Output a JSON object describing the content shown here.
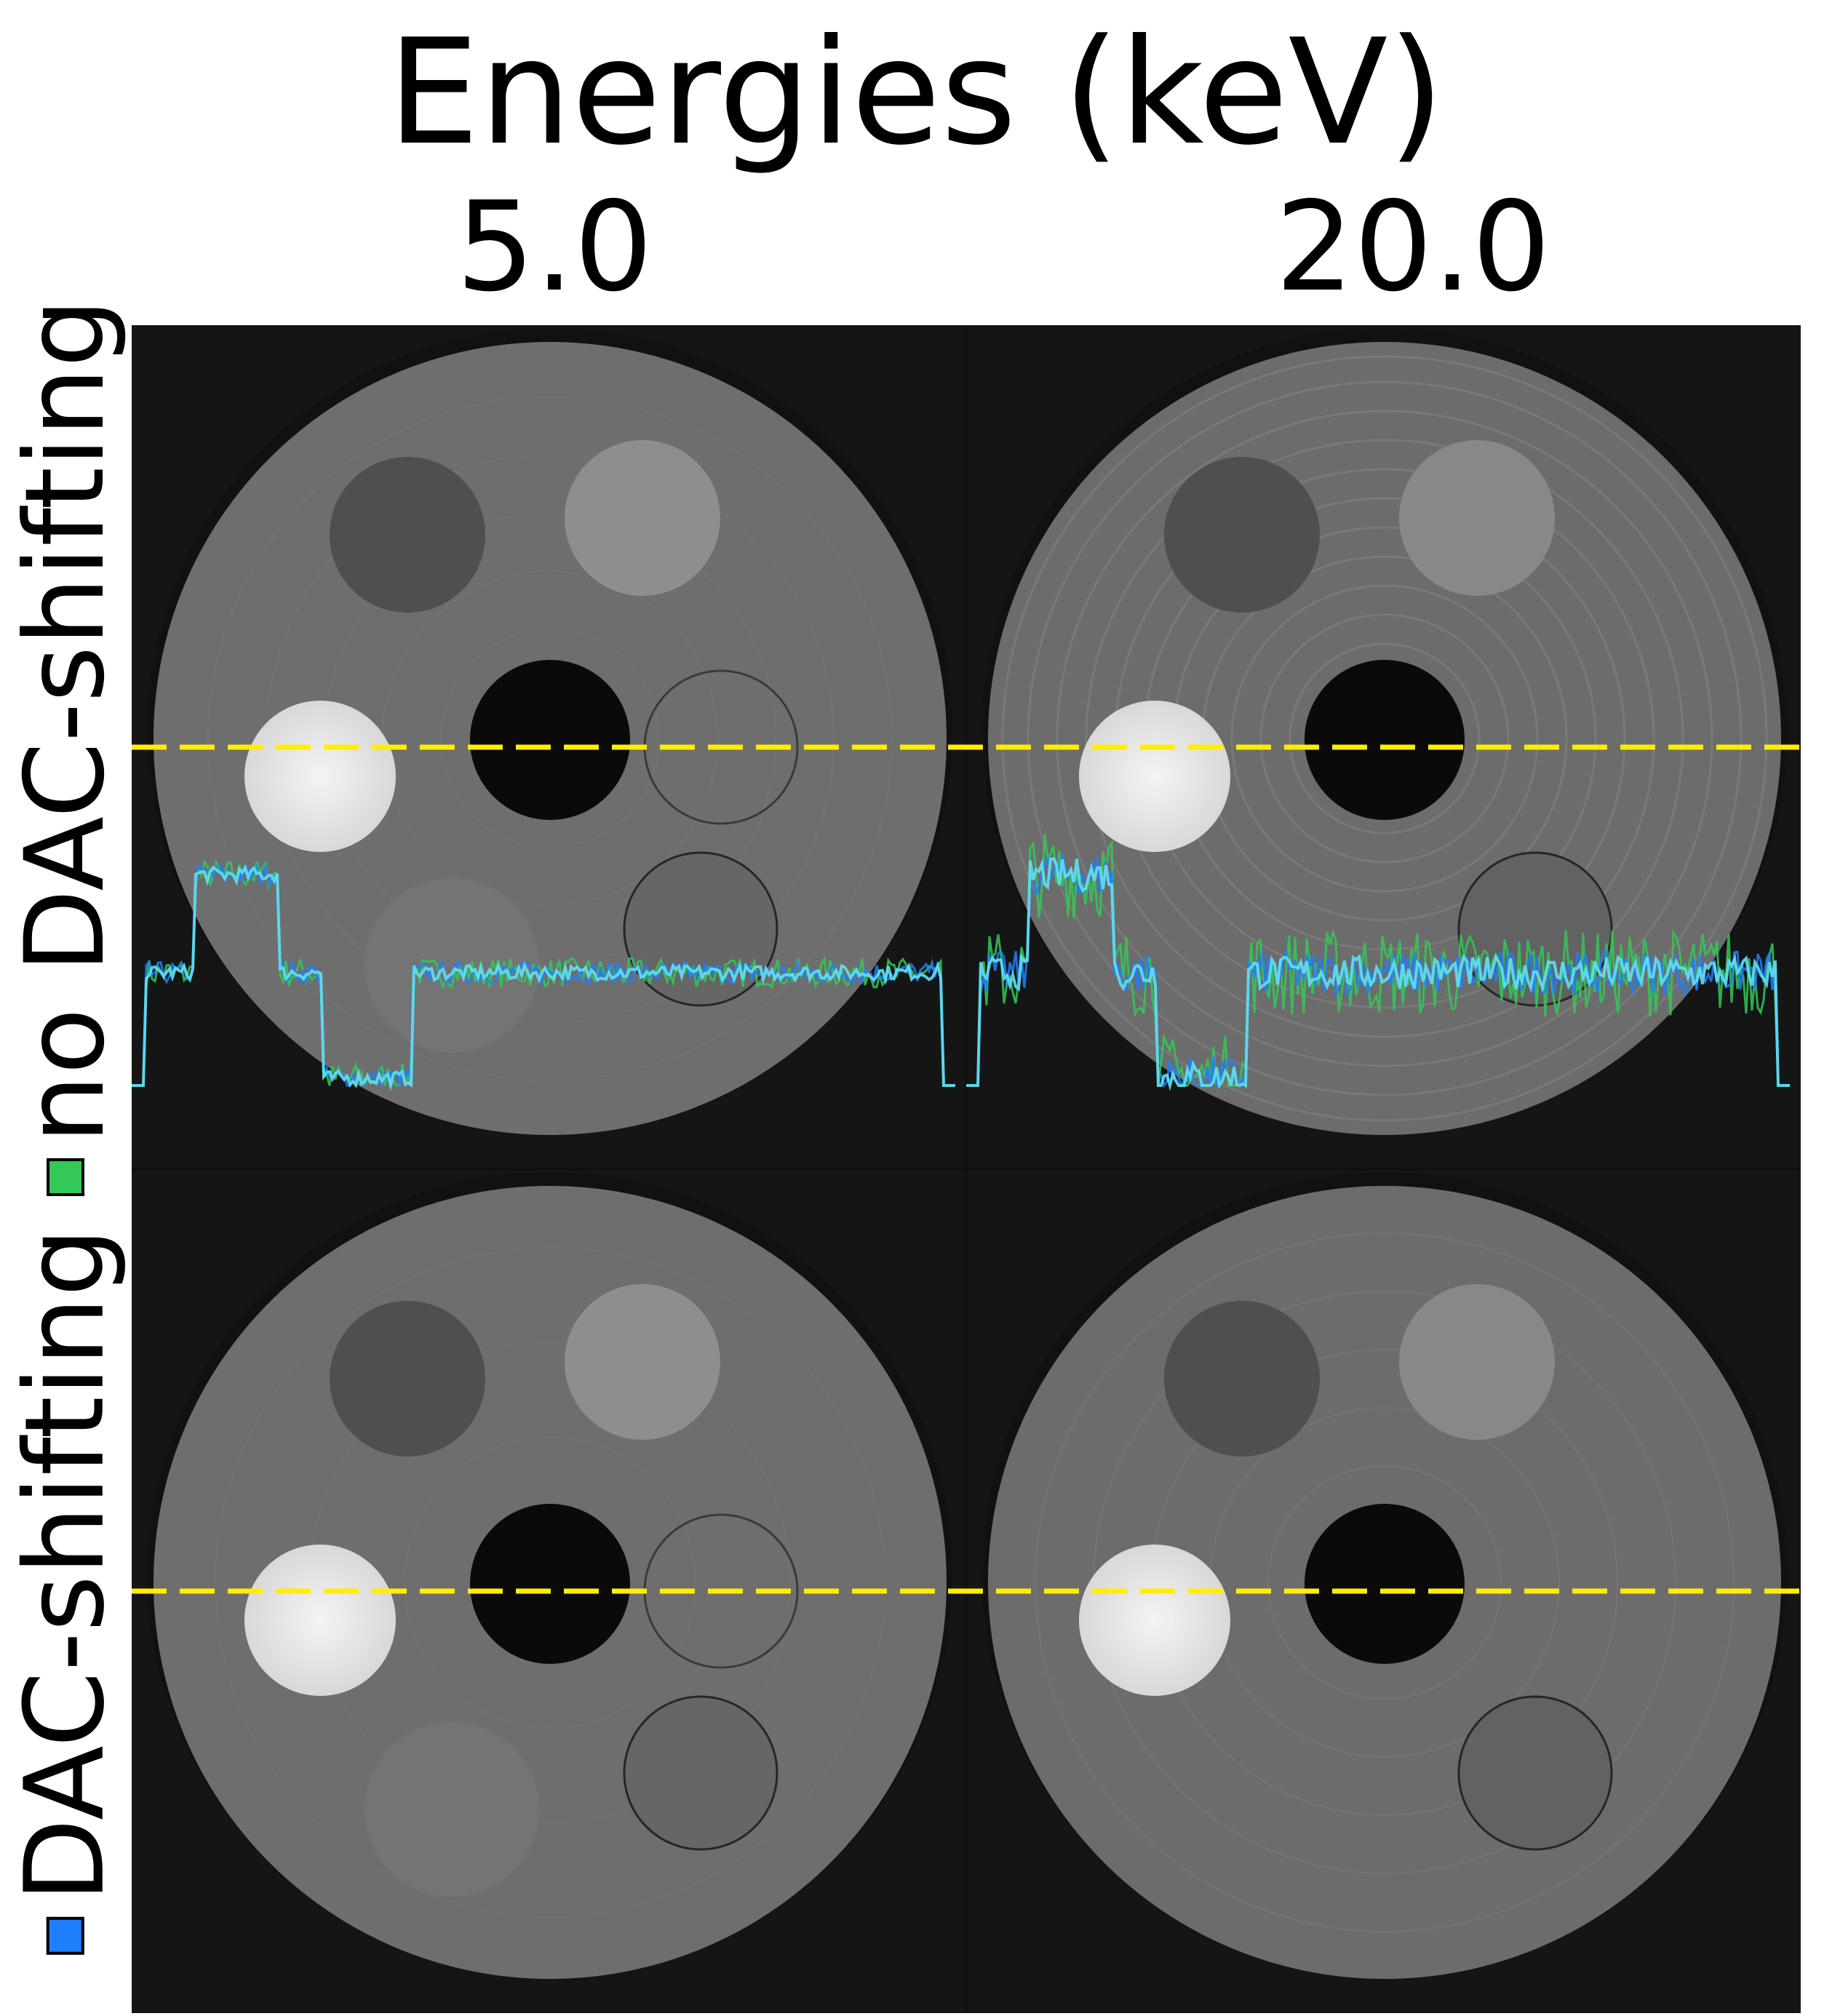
{
  "title": "Energies (keV)",
  "columns": [
    "5.0",
    "20.0"
  ],
  "rows": [
    {
      "label": "no DAC-shifting",
      "swatch_color": "#34c759"
    },
    {
      "label": "DAC-shifting",
      "swatch_color": "#1e7fff"
    }
  ],
  "colors": {
    "background_panel": "#151515",
    "disk": "#6e6e6e",
    "dashed_line": "#ffee00",
    "profile_no_dac": "#34c759",
    "profile_dac": "#1e7fff",
    "profile_overlap": "#5fe0f5"
  }
}
